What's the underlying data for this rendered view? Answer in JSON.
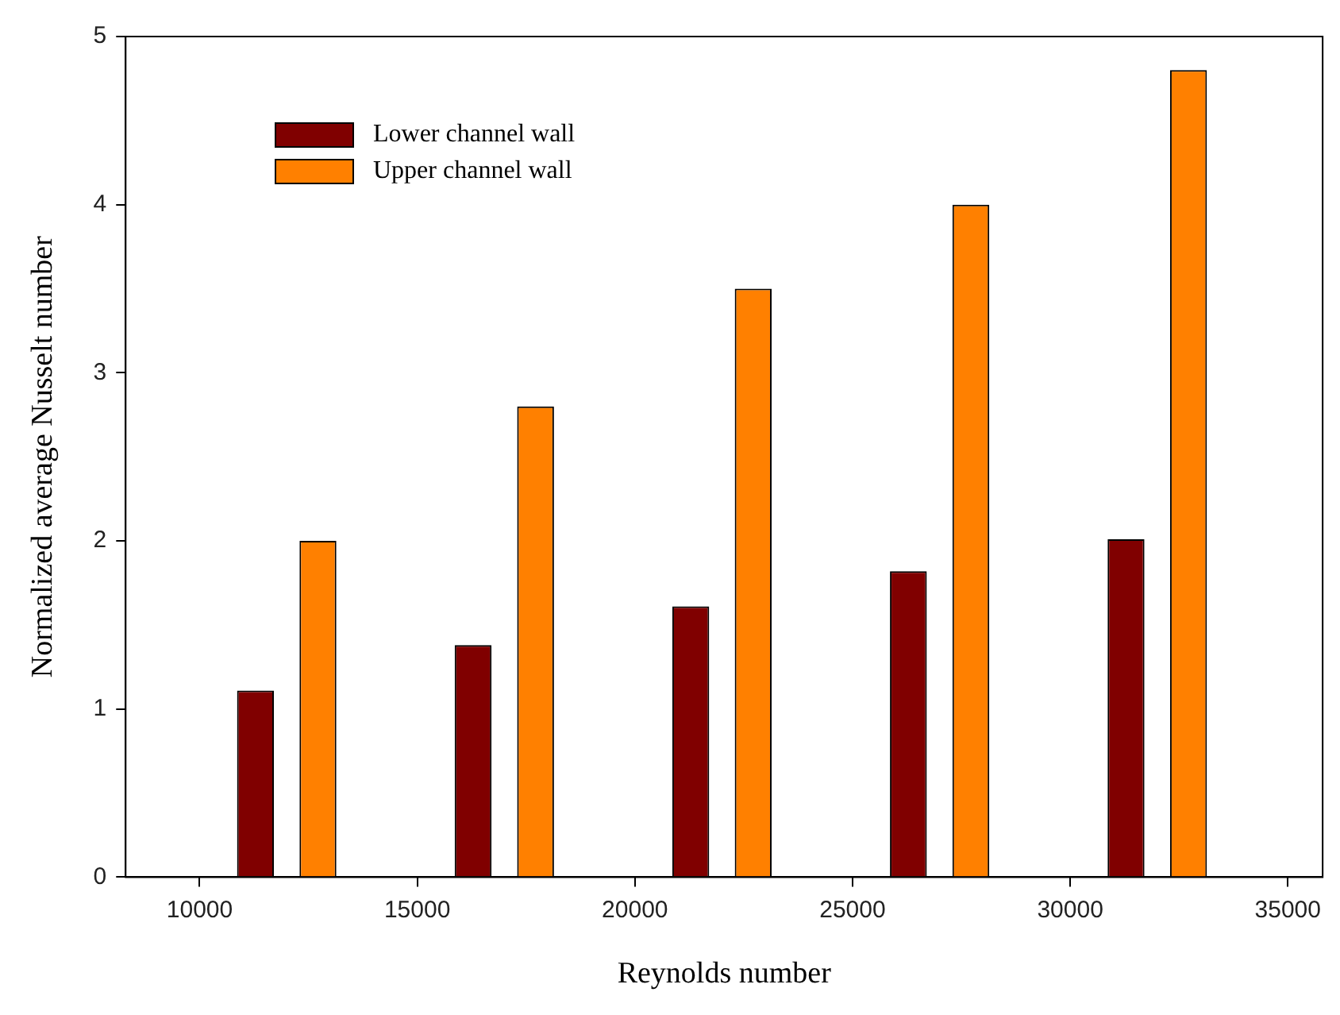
{
  "chart_data": {
    "type": "bar",
    "xlabel": "Reynolds number",
    "ylabel": "Normalized average Nusselt number",
    "x": [
      12000,
      17000,
      22000,
      27000,
      32000
    ],
    "series": [
      {
        "name": "Lower channel wall",
        "color": "#800000",
        "values": [
          1.11,
          1.38,
          1.61,
          1.82,
          2.01
        ]
      },
      {
        "name": "Upper channel wall",
        "color": "#ff8000",
        "values": [
          2.0,
          2.8,
          3.5,
          4.0,
          4.8
        ]
      }
    ],
    "xlim": [
      8300,
      35800
    ],
    "xticks": [
      10000,
      15000,
      20000,
      25000,
      30000,
      35000
    ],
    "ylim": [
      0,
      5
    ],
    "yticks": [
      0,
      1,
      2,
      3,
      4,
      5
    ],
    "legend": "top left"
  }
}
